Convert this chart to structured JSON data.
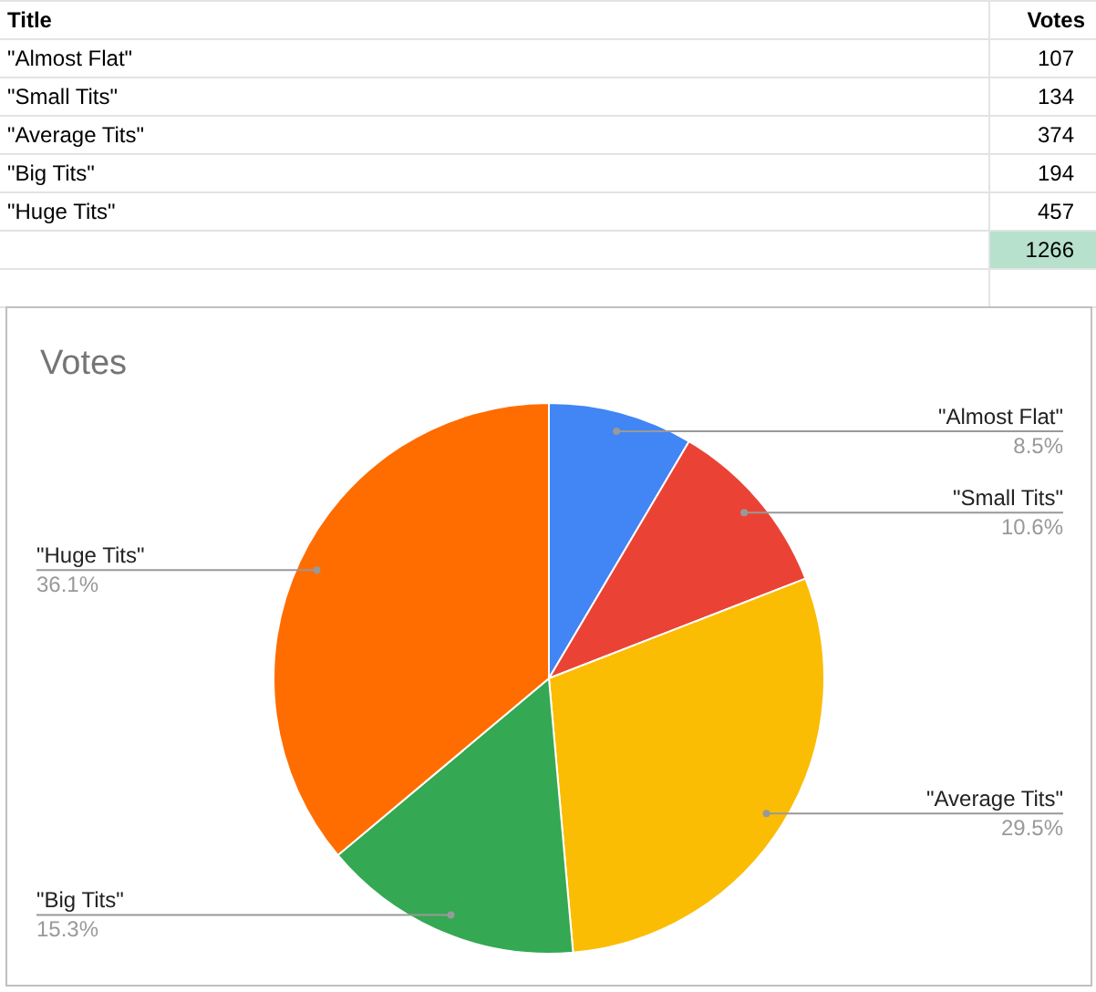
{
  "chart_data": [
    {
      "type": "other",
      "categories": [
        "\"Almost Flat\"",
        "\"Small Tits\"",
        "\"Average  Tits\"",
        "\"Big Tits\"",
        "\"Huge Tits\""
      ],
      "values": [
        107,
        134,
        374,
        194,
        457
      ],
      "data_labels": true,
      "annotations": [
        "Title",
        "Votes",
        "1266"
      ]
    },
    {
      "type": "pie",
      "title": "Votes",
      "categories": [
        "\"Almost Flat\"",
        "\"Small Tits\"",
        "\"Average  Tits\"",
        "\"Big Tits\"",
        "\"Huge Tits\""
      ],
      "values": [
        8.5,
        10.6,
        29.5,
        15.3,
        36.1
      ],
      "colors": [
        "#4285f4",
        "#ea4335",
        "#fbbc04",
        "#34a853",
        "#ff6d01"
      ],
      "value_labels": [
        "8.5%",
        "10.6%",
        "29.5%",
        "15.3%",
        "36.1%"
      ]
    }
  ]
}
